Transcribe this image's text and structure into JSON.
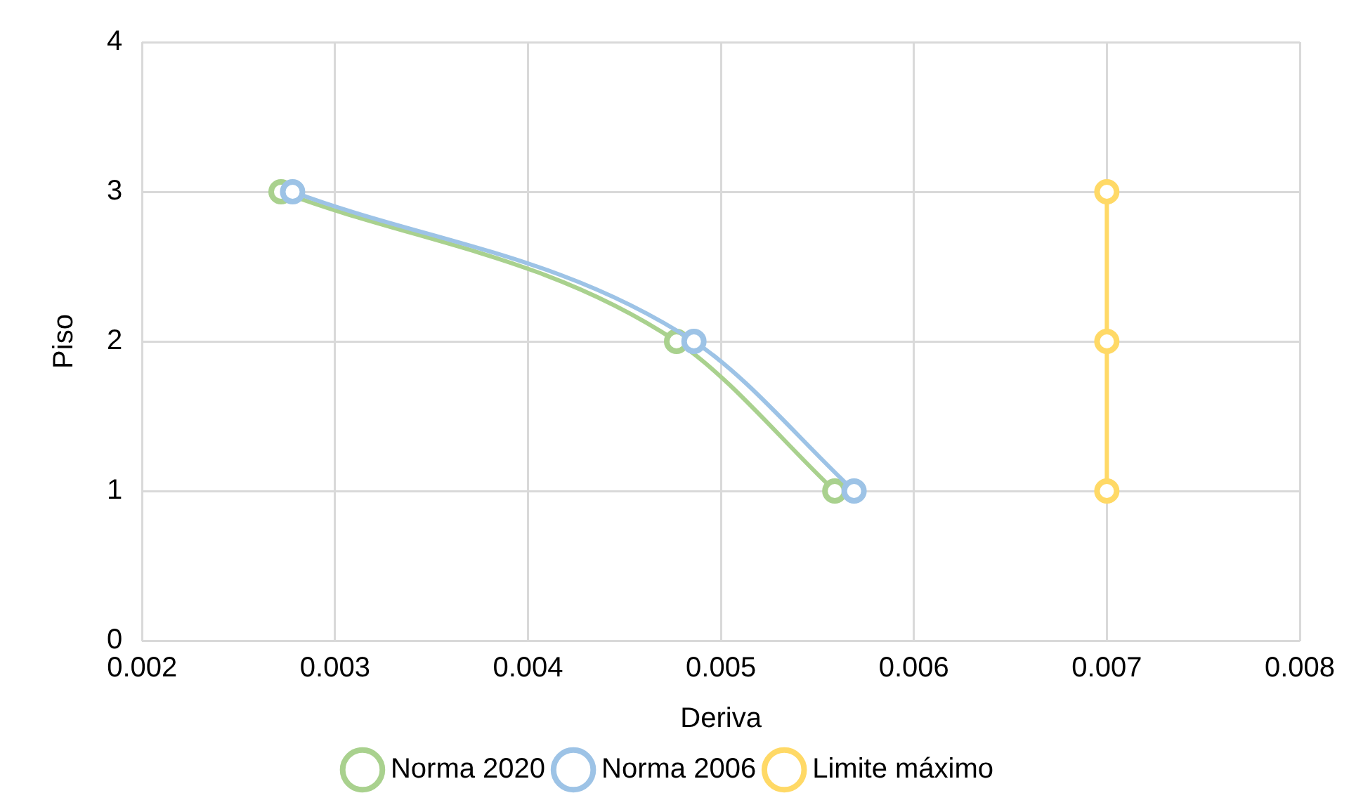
{
  "chart_data": {
    "type": "line",
    "xlabel": "Deriva",
    "ylabel": "Piso",
    "xlim": [
      0.002,
      0.008
    ],
    "xticks": [
      0.002,
      0.003,
      0.004,
      0.005,
      0.006,
      0.007,
      0.008
    ],
    "ylim": [
      0,
      4
    ],
    "yticks": [
      0,
      1,
      2,
      3,
      4
    ],
    "grid": true,
    "legend": "bottom",
    "marker": "circle",
    "line_style": "solid",
    "series": [
      {
        "name": "Norma 2020",
        "color": "#a9d18e",
        "x": [
          0.00272,
          0.00477,
          0.00559
        ],
        "values": [
          3,
          2,
          1
        ]
      },
      {
        "name": "Norma 2006",
        "color": "#9dc3e6",
        "x": [
          0.00278,
          0.00486,
          0.00569
        ],
        "values": [
          3,
          2,
          1
        ]
      },
      {
        "name": "Limite máximo",
        "color": "#ffd966",
        "x": [
          0.007,
          0.007,
          0.007
        ],
        "values": [
          3,
          2,
          1
        ]
      }
    ]
  }
}
